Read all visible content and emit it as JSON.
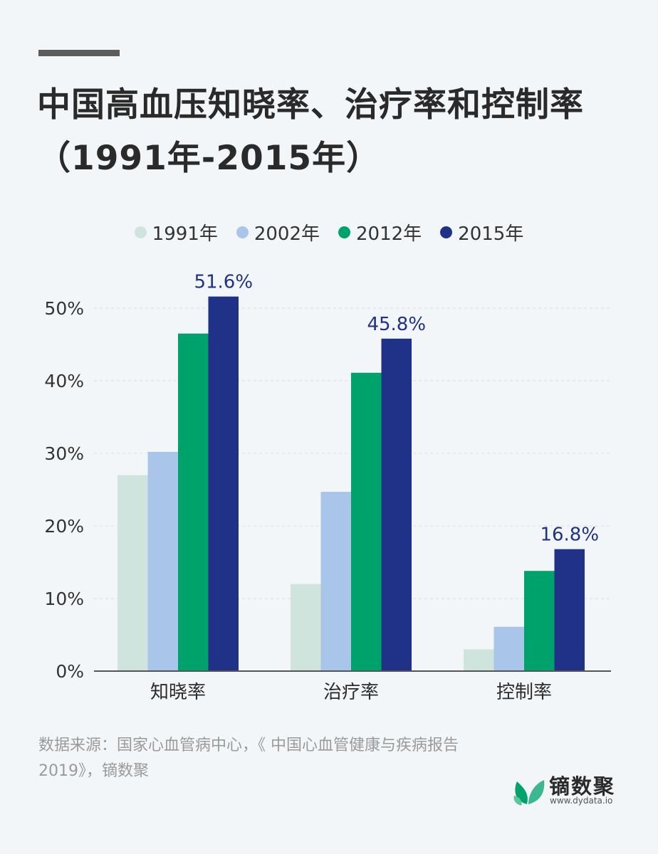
{
  "title": "中国高血压知晓率、治疗率和控制率（1991年-2015年）",
  "source": "数据来源：国家心血管病中心，《 中国心血管健康与疾病报告2019》，镝数聚",
  "brand": {
    "name": "镝数聚",
    "url": "www.dydata.io"
  },
  "colors": {
    "accent": "#1f3288",
    "series": [
      "#cfe4dc",
      "#a9c6ea",
      "#00a26b",
      "#1f3288"
    ],
    "grid": "#dcdcdc",
    "axis": "#555555"
  },
  "chart_data": {
    "type": "bar",
    "title": "中国高血压知晓率、治疗率和控制率（1991年-2015年）",
    "categories": [
      "知晓率",
      "治疗率",
      "控制率"
    ],
    "series": [
      {
        "name": "1991年",
        "values": [
          27.0,
          12.0,
          3.0
        ]
      },
      {
        "name": "2002年",
        "values": [
          30.2,
          24.7,
          6.1
        ]
      },
      {
        "name": "2012年",
        "values": [
          46.5,
          41.1,
          13.8
        ]
      },
      {
        "name": "2015年",
        "values": [
          51.6,
          45.8,
          16.8
        ]
      }
    ],
    "data_labels": [
      "51.6%",
      "45.8%",
      "16.8%"
    ],
    "ylim": [
      0,
      50
    ],
    "yticks": [
      "0%",
      "10%",
      "20%",
      "30%",
      "40%",
      "50%"
    ],
    "grid": true,
    "legend": "top-center"
  }
}
